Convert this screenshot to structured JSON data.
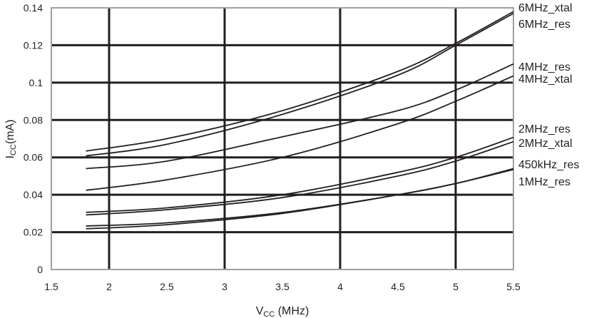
{
  "chart_data": {
    "type": "line",
    "title": "",
    "xlabel": {
      "main": "V",
      "sub": "CC",
      "rest": " (MHz)"
    },
    "ylabel": {
      "main": "I",
      "sub": "CC",
      "rest": "(mA)"
    },
    "xlim": [
      1.5,
      5.5
    ],
    "ylim": [
      0,
      0.14
    ],
    "xticks": [
      "1.5",
      "2",
      "2.5",
      "3",
      "3.5",
      "4",
      "4.5",
      "5",
      "5.5"
    ],
    "yticks": [
      "0",
      "0.02",
      "0.04",
      "0.06",
      "0.08",
      "0.1",
      "0.12",
      "0.14"
    ],
    "grid": true,
    "legend_placement": "right (inline labels at line ends)",
    "x": [
      1.8,
      2.5,
      3.5,
      4.5,
      5.0,
      5.5
    ],
    "series": [
      {
        "name": "6MHz_xtal",
        "values": [
          0.0634,
          0.07,
          0.085,
          0.106,
          0.121,
          0.138
        ]
      },
      {
        "name": "6MHz_res",
        "values": [
          0.0608,
          0.067,
          0.083,
          0.104,
          0.12,
          0.137
        ]
      },
      {
        "name": "4MHz_res",
        "values": [
          0.054,
          0.058,
          0.071,
          0.085,
          0.096,
          0.11
        ]
      },
      {
        "name": "4MHz_xtal",
        "values": [
          0.0424,
          0.048,
          0.06,
          0.078,
          0.09,
          0.1036
        ]
      },
      {
        "name": "2MHz_res",
        "values": [
          0.0306,
          0.033,
          0.04,
          0.052,
          0.06,
          0.0707
        ]
      },
      {
        "name": "2MHz_xtal",
        "values": [
          0.0292,
          0.032,
          0.0385,
          0.05,
          0.058,
          0.0684
        ]
      },
      {
        "name": "450kHz_res",
        "values": [
          0.0233,
          0.025,
          0.0305,
          0.04,
          0.046,
          0.054
        ]
      },
      {
        "name": "1MHz_res",
        "values": [
          0.0218,
          0.024,
          0.03,
          0.04,
          0.046,
          0.0535
        ]
      }
    ],
    "colors": {
      "line": "#231f20",
      "grid": "#231f20",
      "frame": "#9d9fa2"
    }
  }
}
